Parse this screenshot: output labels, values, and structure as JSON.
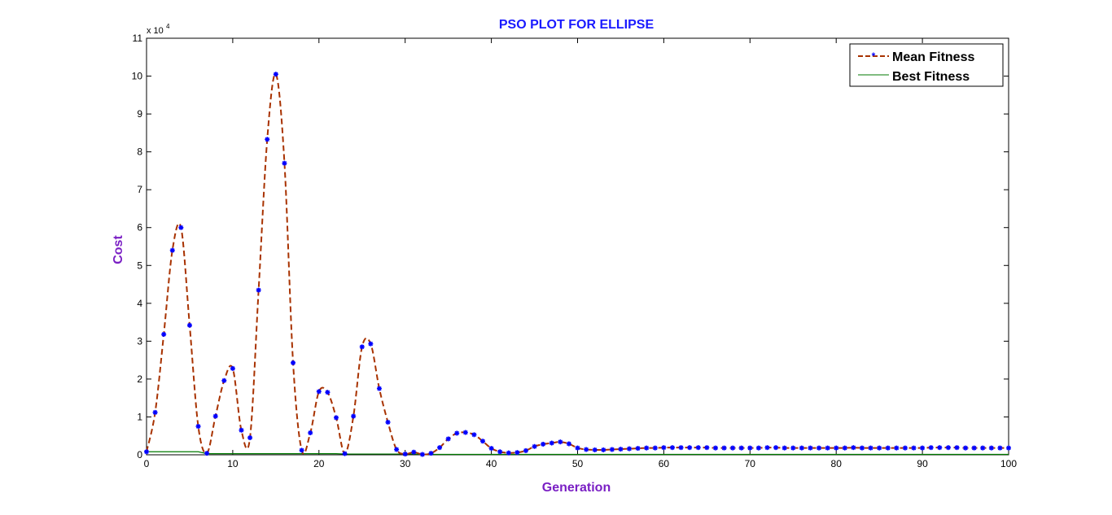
{
  "chart_data": {
    "type": "line",
    "title": "PSO PLOT FOR ELLIPSE",
    "xlabel": "Generation",
    "ylabel": "Cost",
    "exponent_label": "x 10",
    "exponent_power": "4",
    "xlim": [
      0,
      100
    ],
    "ylim": [
      0,
      11
    ],
    "xticks": [
      0,
      10,
      20,
      30,
      40,
      50,
      60,
      70,
      80,
      90,
      100
    ],
    "yticks": [
      0,
      1,
      2,
      3,
      4,
      5,
      6,
      7,
      8,
      9,
      10,
      11
    ],
    "grid": false,
    "legend_position": "top-right",
    "colors": {
      "title": "#1a1aff",
      "axis_label": "#7a1fc4",
      "mean_line": "#a83200",
      "mean_marker": "#0000ff",
      "best_line": "#007a00"
    },
    "x": [
      0,
      1,
      2,
      3,
      4,
      5,
      6,
      7,
      8,
      9,
      10,
      11,
      12,
      13,
      14,
      15,
      16,
      17,
      18,
      19,
      20,
      21,
      22,
      23,
      24,
      25,
      26,
      27,
      28,
      29,
      30,
      31,
      32,
      33,
      34,
      35,
      36,
      37,
      38,
      39,
      40,
      41,
      42,
      43,
      44,
      45,
      46,
      47,
      48,
      49,
      50,
      51,
      52,
      53,
      54,
      55,
      56,
      57,
      58,
      59,
      60,
      61,
      62,
      63,
      64,
      65,
      66,
      67,
      68,
      69,
      70,
      71,
      72,
      73,
      74,
      75,
      76,
      77,
      78,
      79,
      80,
      81,
      82,
      83,
      84,
      85,
      86,
      87,
      88,
      89,
      90,
      91,
      92,
      93,
      94,
      95,
      96,
      97,
      98,
      99,
      100
    ],
    "series": [
      {
        "name": "Mean Fitness",
        "style": "dashed-with-markers",
        "values": [
          0.08,
          1.12,
          3.18,
          5.4,
          6.0,
          3.42,
          0.75,
          0.04,
          1.02,
          1.96,
          2.28,
          0.65,
          0.45,
          4.35,
          8.33,
          10.05,
          7.7,
          2.43,
          0.12,
          0.58,
          1.67,
          1.65,
          0.98,
          0.03,
          1.02,
          2.85,
          2.93,
          1.75,
          0.86,
          0.14,
          0.02,
          0.07,
          0.01,
          0.04,
          0.19,
          0.42,
          0.57,
          0.59,
          0.53,
          0.36,
          0.17,
          0.08,
          0.05,
          0.06,
          0.11,
          0.22,
          0.28,
          0.31,
          0.34,
          0.29,
          0.18,
          0.14,
          0.13,
          0.13,
          0.14,
          0.15,
          0.16,
          0.17,
          0.18,
          0.18,
          0.19,
          0.19,
          0.19,
          0.19,
          0.19,
          0.19,
          0.18,
          0.18,
          0.18,
          0.18,
          0.18,
          0.18,
          0.19,
          0.19,
          0.18,
          0.18,
          0.18,
          0.18,
          0.18,
          0.18,
          0.18,
          0.18,
          0.19,
          0.18,
          0.18,
          0.18,
          0.18,
          0.18,
          0.18,
          0.18,
          0.18,
          0.19,
          0.19,
          0.19,
          0.19,
          0.18,
          0.18,
          0.18,
          0.18,
          0.18,
          0.18
        ]
      },
      {
        "name": "Best Fitness",
        "style": "solid",
        "values": [
          0.08,
          0.08,
          0.08,
          0.08,
          0.08,
          0.08,
          0.08,
          0.03,
          0.03,
          0.03,
          0.03,
          0.03,
          0.03,
          0.03,
          0.03,
          0.03,
          0.03,
          0.03,
          0.03,
          0.03,
          0.03,
          0.03,
          0.03,
          0.02,
          0.02,
          0.02,
          0.02,
          0.02,
          0.02,
          0.02,
          0.02,
          0.02,
          0.01,
          0.01,
          0.01,
          0.01,
          0.01,
          0.01,
          0.01,
          0.01,
          0.01,
          0.01,
          0.01,
          0.01,
          0.01,
          0.01,
          0.01,
          0.01,
          0.01,
          0.01,
          0.01,
          0.01,
          0.01,
          0.01,
          0.01,
          0.01,
          0.01,
          0.01,
          0.01,
          0.01,
          0.01,
          0.01,
          0.01,
          0.01,
          0.01,
          0.01,
          0.01,
          0.01,
          0.01,
          0.01,
          0.01,
          0.01,
          0.01,
          0.01,
          0.01,
          0.01,
          0.01,
          0.01,
          0.01,
          0.01,
          0.01,
          0.01,
          0.01,
          0.01,
          0.01,
          0.01,
          0.01,
          0.01,
          0.01,
          0.01,
          0.01,
          0.01,
          0.01,
          0.01,
          0.01,
          0.01,
          0.01,
          0.01,
          0.01,
          0.01,
          0.01
        ]
      }
    ]
  }
}
